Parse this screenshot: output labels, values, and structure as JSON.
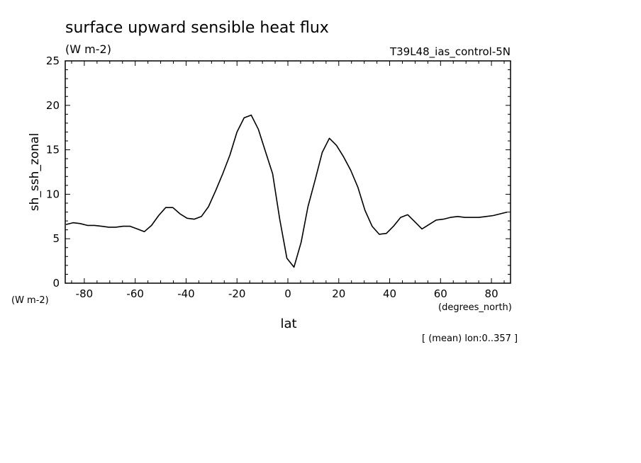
{
  "chart_data": {
    "type": "line",
    "title": "surface upward sensible heat flux",
    "units": "(W m-2)",
    "run_label": "T39L48_ias_control-5N",
    "ylabel": "sh_ssh_zonal",
    "y_units": "(W m-2)",
    "xlabel": "lat",
    "x_units": "(degrees_north)",
    "footnote": "[ (mean) lon:0..357 ]",
    "xlim": [
      -87.5,
      87.5
    ],
    "ylim": [
      0,
      25
    ],
    "x_ticks": [
      "-80",
      "-60",
      "-40",
      "-20",
      "0",
      "20",
      "40",
      "60",
      "80"
    ],
    "y_ticks": [
      "0",
      "5",
      "10",
      "15",
      "20",
      "25"
    ],
    "line_color": "#000000",
    "series": [
      {
        "x": [
          -87.2,
          -84.4,
          -81.6,
          -78.8,
          -76.0,
          -73.2,
          -70.4,
          -67.6,
          -64.8,
          -62.0,
          -59.2,
          -56.4,
          -53.6,
          -50.8,
          -48.0,
          -45.2,
          -42.4,
          -39.6,
          -36.8,
          -34.0,
          -31.2,
          -28.4,
          -25.6,
          -22.8,
          -20.0,
          -17.2,
          -14.4,
          -11.6,
          -8.8,
          -6.0,
          -3.2,
          -0.4,
          2.4,
          5.2,
          7.9,
          10.7,
          13.5,
          16.3,
          19.1,
          21.9,
          24.7,
          27.5,
          30.3,
          33.1,
          35.9,
          38.7,
          41.5,
          44.3,
          47.1,
          49.9,
          52.7,
          55.5,
          58.3,
          61.1,
          63.9,
          66.7,
          69.5,
          72.3,
          75.1,
          77.9,
          80.7,
          83.5,
          86.3
        ],
        "y": [
          6.6,
          6.8,
          6.7,
          6.5,
          6.5,
          6.4,
          6.3,
          6.3,
          6.4,
          6.4,
          6.1,
          5.8,
          6.5,
          7.6,
          8.5,
          8.5,
          7.8,
          7.3,
          7.2,
          7.5,
          8.6,
          10.4,
          12.3,
          14.4,
          17.0,
          18.6,
          18.9,
          17.3,
          14.8,
          12.3,
          7.2,
          2.8,
          1.8,
          4.6,
          8.6,
          11.6,
          14.7,
          16.3,
          15.5,
          14.2,
          12.7,
          10.8,
          8.2,
          6.4,
          5.5,
          5.6,
          6.4,
          7.4,
          7.7,
          6.9,
          6.1,
          6.6,
          7.1,
          7.2,
          7.4,
          7.5,
          7.4,
          7.4,
          7.4,
          7.5,
          7.6,
          7.8,
          8.0
        ]
      }
    ]
  }
}
